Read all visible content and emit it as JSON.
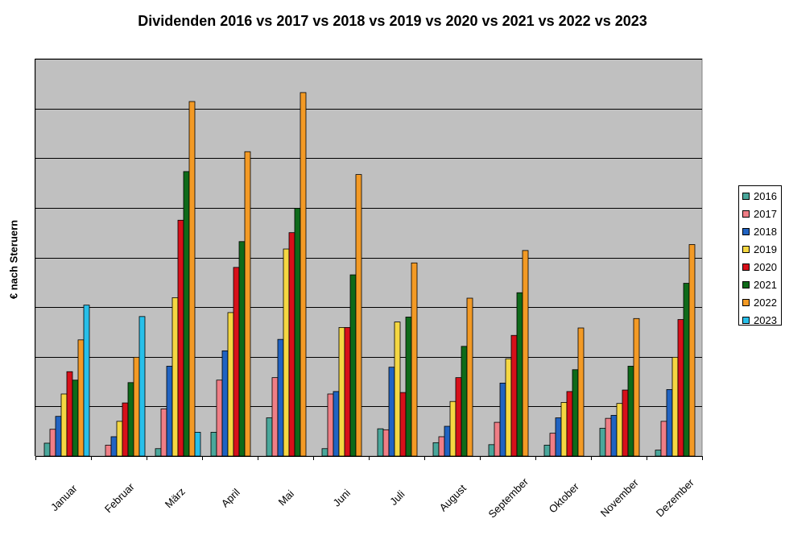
{
  "chart_data": {
    "type": "bar",
    "title": "Dividenden 2016 vs 2017 vs 2018 vs 2019 vs 2020 vs 2021 vs 2022 vs 2023",
    "xlabel": "",
    "ylabel": "€ nach Steruern",
    "ylim": [
      0,
      8
    ],
    "yticks_labeled": false,
    "grid": true,
    "legend_position": "right",
    "plot_background": "#c0c0c0",
    "categories": [
      "Januar",
      "Februar",
      "März",
      "April",
      "Mai",
      "Juni",
      "Juli",
      "August",
      "September",
      "Oktober",
      "November",
      "Dezember"
    ],
    "series": [
      {
        "name": "2016",
        "color": "#4aa79b",
        "values": [
          0.26,
          0,
          0.15,
          0.48,
          0.77,
          0.15,
          0.55,
          0.27,
          0.23,
          0.22,
          0.56,
          0.12
        ]
      },
      {
        "name": "2017",
        "color": "#ef7e86",
        "values": [
          0.54,
          0.22,
          0.95,
          1.53,
          1.58,
          1.25,
          0.53,
          0.39,
          0.68,
          0.46,
          0.76,
          0.7
        ]
      },
      {
        "name": "2018",
        "color": "#2063c2",
        "values": [
          0.8,
          0.39,
          1.81,
          2.12,
          2.35,
          1.3,
          1.79,
          0.6,
          1.47,
          0.77,
          0.82,
          1.34
        ]
      },
      {
        "name": "2019",
        "color": "#f5d742",
        "values": [
          1.25,
          0.7,
          3.19,
          2.89,
          4.17,
          2.59,
          2.7,
          1.1,
          1.96,
          1.08,
          1.06,
          1.99
        ]
      },
      {
        "name": "2020",
        "color": "#d7101a",
        "values": [
          1.7,
          1.07,
          4.75,
          3.8,
          4.5,
          2.59,
          1.28,
          1.58,
          2.43,
          1.3,
          1.33,
          2.75
        ]
      },
      {
        "name": "2021",
        "color": "#0e6a19",
        "values": [
          1.53,
          1.48,
          5.73,
          4.32,
          4.99,
          3.65,
          2.8,
          2.21,
          3.29,
          1.74,
          1.81,
          3.48
        ]
      },
      {
        "name": "2022",
        "color": "#f39a25",
        "values": [
          2.34,
          1.99,
          7.14,
          6.13,
          7.32,
          5.67,
          3.89,
          3.18,
          4.14,
          2.58,
          2.77,
          4.26
        ]
      },
      {
        "name": "2023",
        "color": "#27bfe9",
        "values": [
          3.04,
          2.81,
          0.48,
          null,
          null,
          null,
          null,
          null,
          null,
          null,
          null,
          null
        ]
      }
    ]
  }
}
